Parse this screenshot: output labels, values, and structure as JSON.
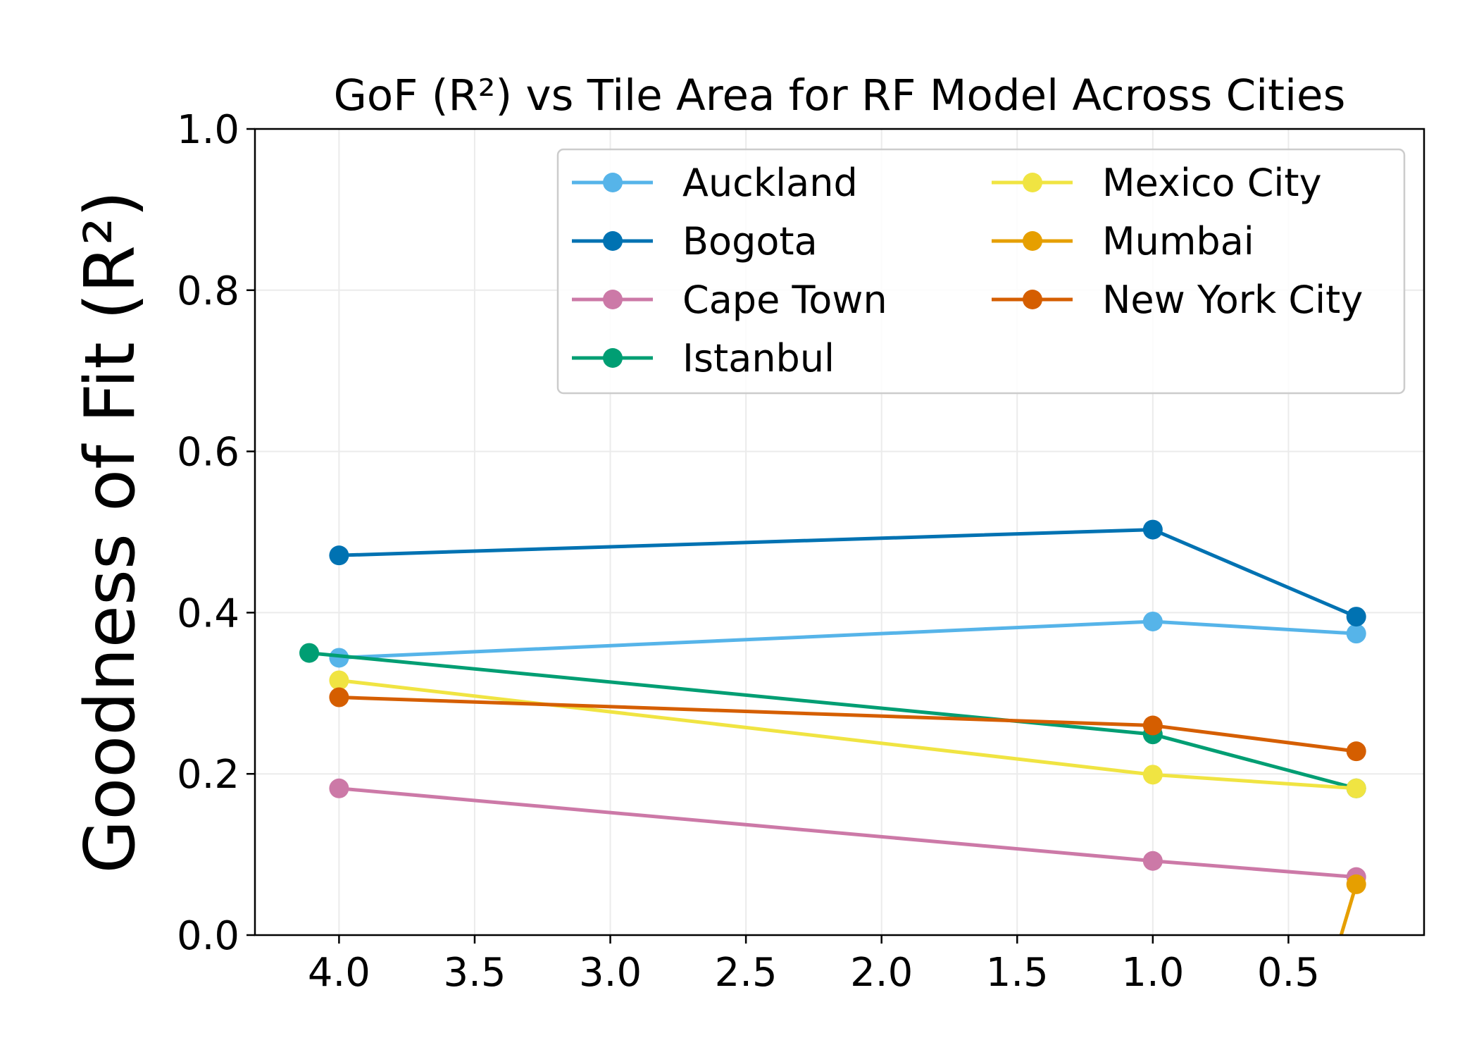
{
  "chart_data": {
    "type": "line",
    "title": "GoF (R²) vs Tile Area for RF Model Across Cities",
    "xlabel": "",
    "ylabel": "Goodness of Fit (R²)",
    "xlim": [
      4.31,
      0.0
    ],
    "ylim": [
      0.0,
      1.0
    ],
    "x_inverted": true,
    "xticks": [
      4.0,
      3.5,
      3.0,
      2.5,
      2.0,
      1.5,
      1.0,
      0.5
    ],
    "xtick_labels": [
      "4.0",
      "3.5",
      "3.0",
      "2.5",
      "2.0",
      "1.5",
      "1.0",
      "0.5"
    ],
    "yticks": [
      0.0,
      0.2,
      0.4,
      0.6,
      0.8,
      1.0
    ],
    "ytick_labels": [
      "0.0",
      "0.2",
      "0.4",
      "0.6",
      "0.8",
      "1.0"
    ],
    "grid": true,
    "legend_position": "top-right",
    "legend_columns": 2,
    "series": [
      {
        "name": "Auckland",
        "color": "#56B4E9",
        "x": [
          4.0,
          1.0,
          0.25
        ],
        "y": [
          0.344,
          0.389,
          0.374
        ]
      },
      {
        "name": "Bogota",
        "color": "#0072B2",
        "x": [
          4.0,
          1.0,
          0.25
        ],
        "y": [
          0.471,
          0.503,
          0.395
        ]
      },
      {
        "name": "Cape Town",
        "color": "#CC79A7",
        "x": [
          4.0,
          1.0,
          0.25
        ],
        "y": [
          0.182,
          0.092,
          0.072
        ]
      },
      {
        "name": "Istanbul",
        "color": "#009E73",
        "x": [
          4.11,
          1.0,
          0.25
        ],
        "y": [
          0.35,
          0.249,
          0.182
        ]
      },
      {
        "name": "Mexico City",
        "color": "#F0E442",
        "x": [
          4.0,
          1.0,
          0.25
        ],
        "y": [
          0.316,
          0.199,
          0.182
        ]
      },
      {
        "name": "Mumbai",
        "color": "#E69F00",
        "x": [
          0.35,
          0.25
        ],
        "y": [
          -0.05,
          0.063
        ],
        "markers": [
          false,
          true
        ]
      },
      {
        "name": "New York City",
        "color": "#D55E00",
        "x": [
          4.0,
          1.0,
          0.25
        ],
        "y": [
          0.295,
          0.26,
          0.228
        ]
      }
    ]
  }
}
